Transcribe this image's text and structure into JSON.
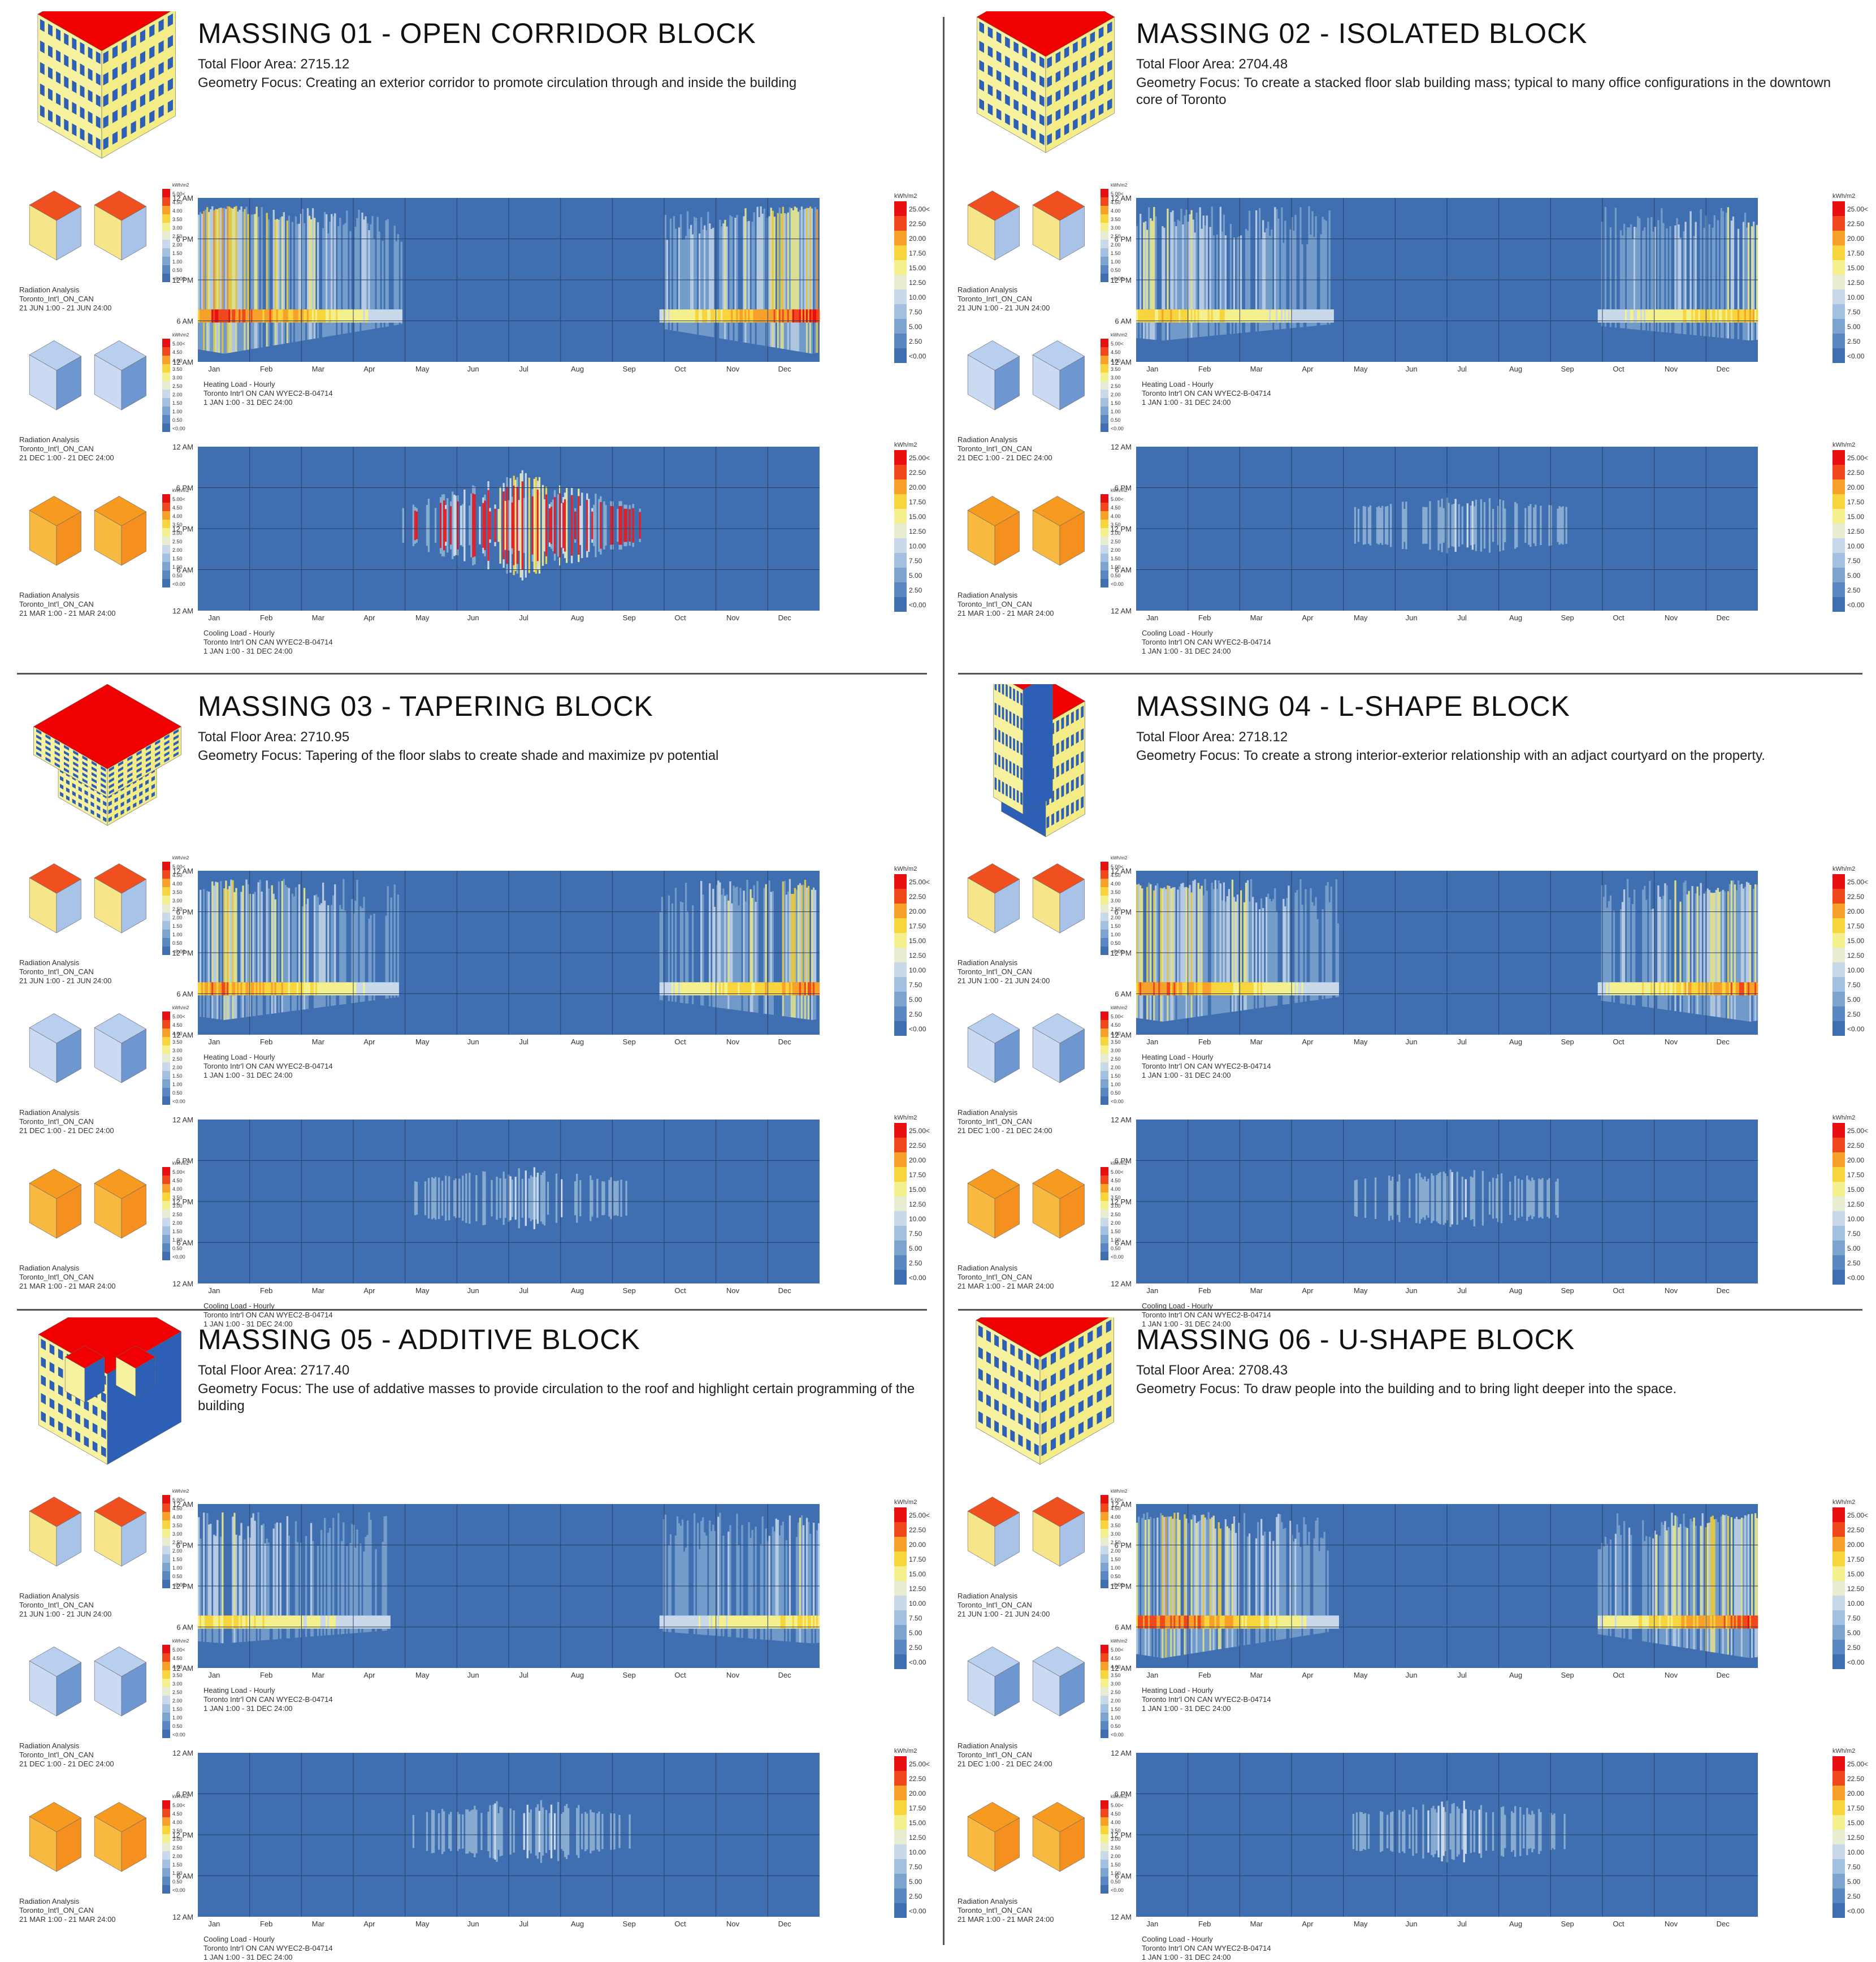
{
  "common": {
    "months": [
      "Jan",
      "Feb",
      "Mar",
      "Apr",
      "May",
      "Jun",
      "Jul",
      "Aug",
      "Sep",
      "Oct",
      "Nov",
      "Dec"
    ],
    "time_ticks": [
      "12 AM",
      "6 PM",
      "12 PM",
      "6 AM",
      "12 AM"
    ],
    "unit": "kWh/m2",
    "small_legend": [
      "5.00<",
      "4.50",
      "4.00",
      "3.50",
      "3.00",
      "2.50",
      "2.00",
      "1.50",
      "1.00",
      "0.50",
      "<0.00"
    ],
    "big_legend": [
      "25.00<",
      "22.50",
      "20.00",
      "17.50",
      "15.00",
      "12.50",
      "10.00",
      "7.50",
      "5.00",
      "2.50",
      "<0.00"
    ],
    "heat_colors": [
      "#3f6fb0",
      "#7da4cf",
      "#c9d9ea",
      "#f4f08e",
      "#f8d53c",
      "#f7a02a",
      "#f0471c",
      "#e80f13"
    ],
    "cool_colors": [
      "#3f6fb0",
      "#8fb1d4",
      "#d6e3ee",
      "#f5f29a",
      "#f6d94a",
      "#e0356f"
    ],
    "heating_label": "Heating Load - Hourly\nToronto Intr'l ON CAN WYEC2-B-04714\n1 JAN 1:00 - 31 DEC 24:00",
    "cooling_label": "Cooling Load - Hourly\nToronto Intr'l ON CAN WYEC2-B-04714\n1 JAN 1:00 - 31 DEC 24:00",
    "rad_jun": "Radiation Analysis\nToronto_Int'l_ON_CAN\n21 JUN 1:00 - 21 JUN 24:00",
    "rad_dec": "Radiation Analysis\nToronto_Int'l_ON_CAN\n21 DEC 1:00 - 21 DEC 24:00",
    "rad_mar": "Radiation Analysis\nToronto_Int'l_ON_CAN\n21 MAR 1:00 - 21 MAR 24:00"
  },
  "panels": [
    {
      "title": "MASSING 01 - OPEN CORRIDOR BLOCK",
      "area": "Total Floor Area: 2715.12",
      "focus": "Geometry Focus: Creating an exterior corridor to promote circulation through and inside the building",
      "shape": "u",
      "heat_intensity": 0.95,
      "cool_intensity": 0.95
    },
    {
      "title": "MASSING 02 - ISOLATED BLOCK",
      "area": "Total Floor Area: 2704.48",
      "focus": "Geometry Focus: To create a stacked floor slab building mass; typical to many office configurations in the downtown core of Toronto",
      "shape": "box",
      "heat_intensity": 0.55,
      "cool_intensity": 0.35
    },
    {
      "title": "MASSING 03 - TAPERING BLOCK",
      "area": "Total Floor Area: 2710.95",
      "focus": "Geometry Focus: Tapering of the floor slabs to create shade and maximize pv potential",
      "shape": "taper",
      "heat_intensity": 0.75,
      "cool_intensity": 0.4
    },
    {
      "title": "MASSING 04 - L-SHAPE BLOCK",
      "area": "Total Floor Area: 2718.12",
      "focus": "Geometry Focus: To create a strong interior-exterior relationship with an adjact courtyard on the property.",
      "shape": "l",
      "heat_intensity": 0.8,
      "cool_intensity": 0.35
    },
    {
      "title": "MASSING 05 - ADDITIVE BLOCK",
      "area": "Total Floor Area: 2717.40",
      "focus": "Geometry Focus: The use of addative masses to provide circulation to the roof and highlight certain programming of the building",
      "shape": "add",
      "heat_intensity": 0.45,
      "cool_intensity": 0.45
    },
    {
      "title": "MASSING 06 - U-SHAPE BLOCK",
      "area": "Total Floor Area: 2708.43",
      "focus": "Geometry Focus: To draw people into the building and to bring light deeper into the space.",
      "shape": "u2",
      "heat_intensity": 0.9,
      "cool_intensity": 0.4
    }
  ]
}
